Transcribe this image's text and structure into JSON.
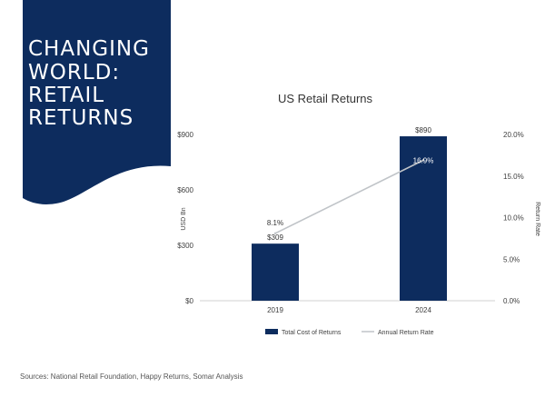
{
  "slide": {
    "title_lines": [
      "CHANGING",
      "WORLD:",
      "RETAIL",
      "RETURNS"
    ],
    "source": "Sources: National Retail Foundation, Happy Returns, Somar Analysis"
  },
  "colors": {
    "navy": "#0d2c5e",
    "line": "#c0c4c8",
    "axis_text": "#404040"
  },
  "chart_data": {
    "type": "bar",
    "title": "US Retail Returns",
    "categories": [
      "2019",
      "2024"
    ],
    "series": [
      {
        "name": "Total Cost of Returns",
        "kind": "bar",
        "axis": "left",
        "values": [
          309,
          890
        ],
        "labels": [
          "$309",
          "$890"
        ]
      },
      {
        "name": "Annual Return Rate",
        "kind": "line",
        "axis": "right",
        "values": [
          8.1,
          16.9
        ],
        "labels": [
          "8.1%",
          "16.9%"
        ]
      }
    ],
    "ylabel": "USD Bn",
    "y2label": "Return Rate",
    "ylim": [
      0,
      900
    ],
    "y2lim": [
      0,
      20
    ],
    "yticks": [
      0,
      300,
      600,
      900
    ],
    "ytick_labels": [
      "$0",
      "$300",
      "$600",
      "$900"
    ],
    "y2ticks": [
      0,
      5,
      10,
      15,
      20
    ],
    "y2tick_labels": [
      "0.0%",
      "5.0%",
      "10.0%",
      "15.0%",
      "20.0%"
    ],
    "legend_position": "bottom",
    "grid": false
  }
}
